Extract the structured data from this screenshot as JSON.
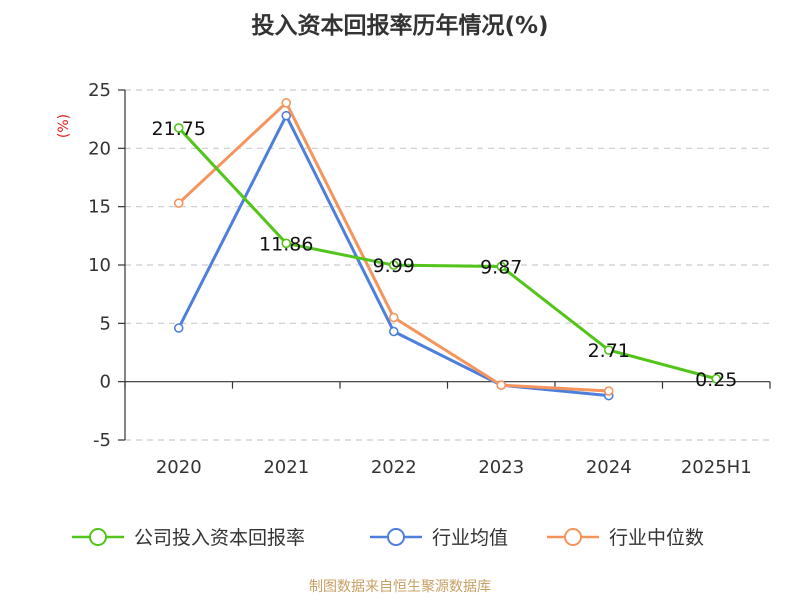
{
  "chart_data": {
    "type": "line",
    "title": "投入资本回报率历年情况(%)",
    "ylabel": "(%)",
    "categories": [
      "2020",
      "2021",
      "2022",
      "2023",
      "2024",
      "2025H1"
    ],
    "ylim": [
      -5,
      25
    ],
    "yticks": [
      "25",
      "20",
      "15",
      "10",
      "5",
      "0",
      "-5"
    ],
    "grid": true,
    "legend_position": "bottom",
    "series": [
      {
        "name": "公司投入资本回报率",
        "color": "#52c41a",
        "values": [
          21.75,
          11.86,
          9.99,
          9.87,
          2.71,
          0.25
        ],
        "labels": [
          "21.75",
          "11.86",
          "9.99",
          "9.87",
          "2.71",
          "0.25"
        ]
      },
      {
        "name": "行业均值",
        "color": "#4e7fdc",
        "values": [
          4.6,
          22.8,
          4.3,
          -0.3,
          -1.2,
          null
        ],
        "labels": []
      },
      {
        "name": "行业中位数",
        "color": "#f5945c",
        "values": [
          15.3,
          23.9,
          5.5,
          -0.3,
          -0.8,
          null
        ],
        "labels": []
      }
    ],
    "source": "制图数据来自恒生聚源数据库",
    "colors": {
      "y_unit": "#e02020",
      "source": "#c8a064",
      "grid": "#cccccc",
      "axis": "#333333"
    }
  }
}
